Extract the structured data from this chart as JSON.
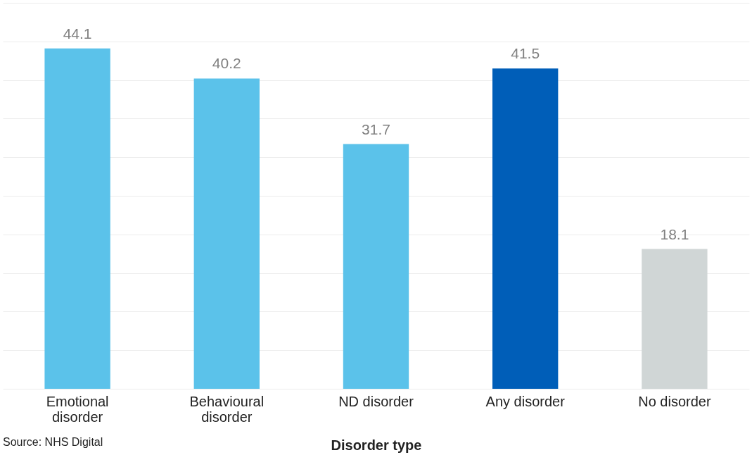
{
  "chart_data": {
    "type": "bar",
    "xlabel": "Disorder type",
    "categories": [
      "Emotional disorder",
      "Behavioural disorder",
      "ND disorder",
      "Any disorder",
      "No disorder"
    ],
    "values": [
      44.1,
      40.2,
      31.7,
      41.5,
      18.1
    ],
    "colors": [
      "#5bc2ea",
      "#5bc2ea",
      "#5bc2ea",
      "#005eb8",
      "#d0d6d6"
    ],
    "ylim": [
      0,
      50
    ],
    "yticks": [
      0,
      5,
      10,
      15,
      20,
      25,
      30,
      35,
      40,
      45,
      50
    ],
    "grid": true,
    "tick_labels": "x",
    "data_labels": true,
    "annotations": [
      "Source: NHS Digital"
    ]
  }
}
